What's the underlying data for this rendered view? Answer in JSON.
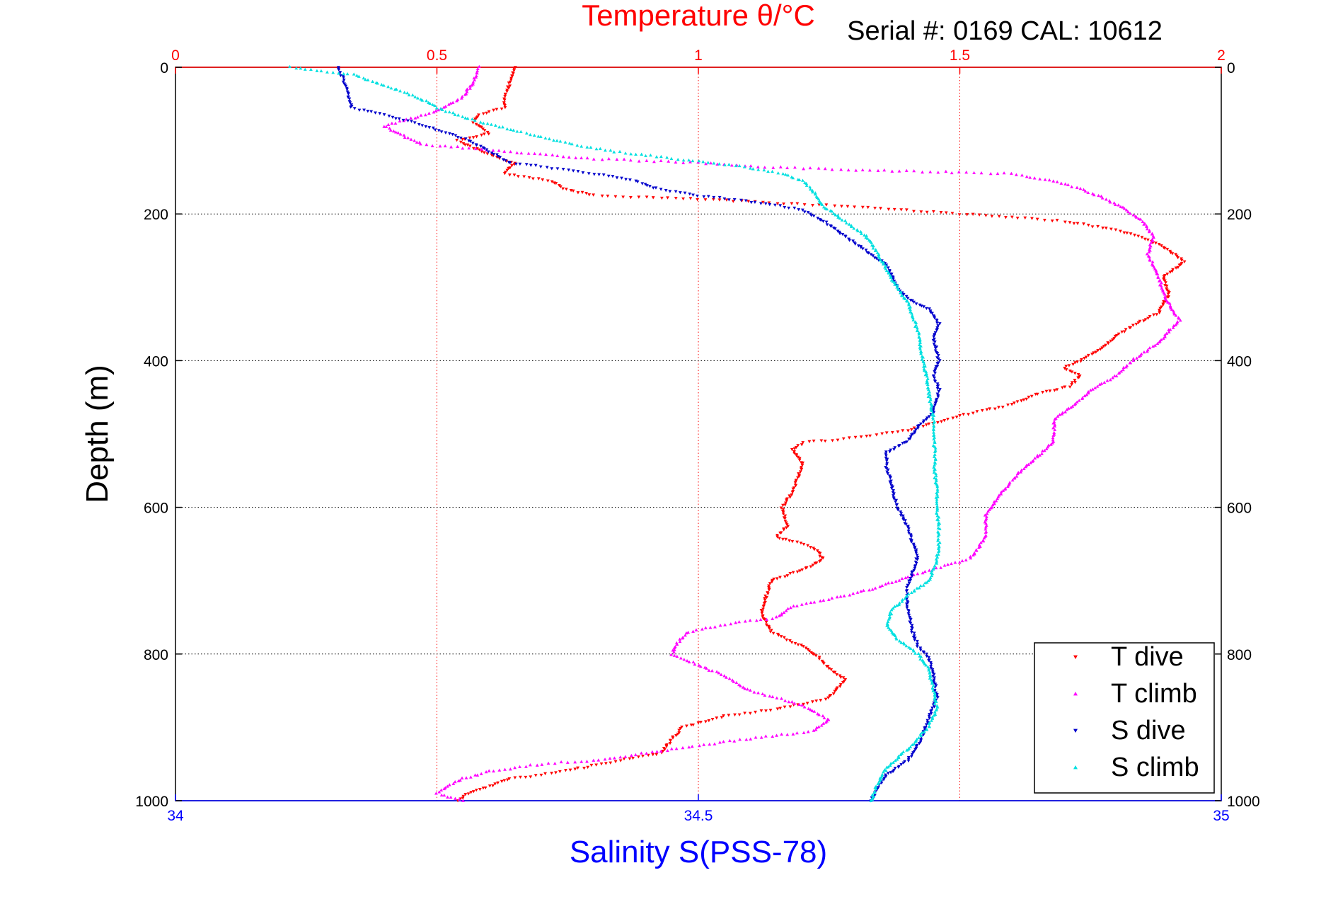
{
  "chart_data": {
    "type": "scatter",
    "header_note": "Serial #: 0169 CAL: 10612",
    "top_axis": {
      "label": "Temperature θ/°C",
      "range": [
        0,
        2
      ],
      "ticks": [
        0,
        0.5,
        1,
        1.5,
        2
      ],
      "tick_labels": [
        "0",
        "0.5",
        "1",
        "1.5",
        "2"
      ],
      "color": "#ff0000"
    },
    "bottom_axis": {
      "label": "Salinity S(PSS-78)",
      "range": [
        34,
        35
      ],
      "ticks": [
        34,
        34.5,
        35
      ],
      "tick_labels": [
        "34",
        "34.5",
        "35"
      ],
      "color": "#0000ff"
    },
    "y_axis": {
      "label": "Depth (m)",
      "range": [
        0,
        1000
      ],
      "reversed": true,
      "ticks": [
        0,
        200,
        400,
        600,
        800,
        1000
      ],
      "tick_labels": [
        "0",
        "200",
        "400",
        "600",
        "800",
        "1000"
      ]
    },
    "grid": true,
    "legend_position": "bottom-right",
    "series": [
      {
        "name": "T dive",
        "axis": "top",
        "color": "#ff0000",
        "marker": "triangle-down",
        "points": [
          [
            0.65,
            0
          ],
          [
            0.64,
            20
          ],
          [
            0.63,
            40
          ],
          [
            0.63,
            55
          ],
          [
            0.58,
            65
          ],
          [
            0.57,
            75
          ],
          [
            0.6,
            90
          ],
          [
            0.54,
            100
          ],
          [
            0.57,
            110
          ],
          [
            0.62,
            125
          ],
          [
            0.65,
            130
          ],
          [
            0.63,
            145
          ],
          [
            0.72,
            155
          ],
          [
            0.74,
            165
          ],
          [
            0.8,
            175
          ],
          [
            1.0,
            180
          ],
          [
            1.15,
            185
          ],
          [
            1.3,
            190
          ],
          [
            1.4,
            195
          ],
          [
            1.5,
            200
          ],
          [
            1.6,
            205
          ],
          [
            1.7,
            210
          ],
          [
            1.8,
            222
          ],
          [
            1.85,
            232
          ],
          [
            1.89,
            245
          ],
          [
            1.93,
            265
          ],
          [
            1.89,
            285
          ],
          [
            1.9,
            310
          ],
          [
            1.88,
            335
          ],
          [
            1.85,
            345
          ],
          [
            1.8,
            365
          ],
          [
            1.77,
            385
          ],
          [
            1.73,
            400
          ],
          [
            1.7,
            410
          ],
          [
            1.73,
            420
          ],
          [
            1.71,
            435
          ],
          [
            1.65,
            445
          ],
          [
            1.6,
            460
          ],
          [
            1.5,
            475
          ],
          [
            1.45,
            485
          ],
          [
            1.4,
            495
          ],
          [
            1.3,
            505
          ],
          [
            1.2,
            512
          ],
          [
            1.18,
            522
          ],
          [
            1.2,
            540
          ],
          [
            1.19,
            560
          ],
          [
            1.18,
            580
          ],
          [
            1.16,
            600
          ],
          [
            1.17,
            625
          ],
          [
            1.15,
            640
          ],
          [
            1.22,
            655
          ],
          [
            1.24,
            670
          ],
          [
            1.2,
            685
          ],
          [
            1.14,
            700
          ],
          [
            1.13,
            720
          ],
          [
            1.12,
            745
          ],
          [
            1.14,
            770
          ],
          [
            1.2,
            790
          ],
          [
            1.23,
            805
          ],
          [
            1.25,
            820
          ],
          [
            1.28,
            835
          ],
          [
            1.25,
            860
          ],
          [
            1.15,
            875
          ],
          [
            1.05,
            885
          ],
          [
            0.97,
            900
          ],
          [
            0.95,
            915
          ],
          [
            0.93,
            935
          ],
          [
            0.85,
            945
          ],
          [
            0.78,
            955
          ],
          [
            0.7,
            965
          ],
          [
            0.64,
            970
          ],
          [
            0.6,
            980
          ],
          [
            0.56,
            990
          ],
          [
            0.54,
            1000
          ]
        ]
      },
      {
        "name": "T climb",
        "axis": "top",
        "color": "#ff00ff",
        "marker": "triangle-up",
        "points": [
          [
            0.58,
            0
          ],
          [
            0.57,
            20
          ],
          [
            0.55,
            40
          ],
          [
            0.5,
            60
          ],
          [
            0.45,
            70
          ],
          [
            0.4,
            80
          ],
          [
            0.44,
            95
          ],
          [
            0.47,
            105
          ],
          [
            0.8,
            125
          ],
          [
            1.0,
            130
          ],
          [
            1.1,
            135
          ],
          [
            1.3,
            140
          ],
          [
            1.6,
            145
          ],
          [
            1.68,
            155
          ],
          [
            1.73,
            165
          ],
          [
            1.78,
            180
          ],
          [
            1.82,
            195
          ],
          [
            1.85,
            210
          ],
          [
            1.87,
            230
          ],
          [
            1.86,
            255
          ],
          [
            1.88,
            285
          ],
          [
            1.89,
            310
          ],
          [
            1.91,
            335
          ],
          [
            1.92,
            345
          ],
          [
            1.88,
            375
          ],
          [
            1.83,
            400
          ],
          [
            1.8,
            420
          ],
          [
            1.75,
            440
          ],
          [
            1.72,
            460
          ],
          [
            1.68,
            480
          ],
          [
            1.68,
            510
          ],
          [
            1.65,
            530
          ],
          [
            1.61,
            555
          ],
          [
            1.58,
            580
          ],
          [
            1.55,
            610
          ],
          [
            1.55,
            640
          ],
          [
            1.52,
            670
          ],
          [
            1.42,
            690
          ],
          [
            1.34,
            710
          ],
          [
            1.25,
            725
          ],
          [
            1.18,
            735
          ],
          [
            1.15,
            750
          ],
          [
            1.05,
            760
          ],
          [
            0.98,
            770
          ],
          [
            0.96,
            785
          ],
          [
            0.95,
            800
          ],
          [
            1.0,
            815
          ],
          [
            1.05,
            830
          ],
          [
            1.1,
            850
          ],
          [
            1.2,
            870
          ],
          [
            1.25,
            890
          ],
          [
            1.22,
            905
          ],
          [
            1.1,
            915
          ],
          [
            1.0,
            925
          ],
          [
            0.9,
            935
          ],
          [
            0.8,
            945
          ],
          [
            0.7,
            950
          ],
          [
            0.6,
            960
          ],
          [
            0.55,
            970
          ],
          [
            0.52,
            980
          ],
          [
            0.5,
            990
          ],
          [
            0.55,
            1000
          ]
        ]
      },
      {
        "name": "S dive",
        "axis": "bottom",
        "color": "#0000cc",
        "marker": "triangle-down",
        "points": [
          [
            34.155,
            0
          ],
          [
            34.16,
            15
          ],
          [
            34.165,
            35
          ],
          [
            34.168,
            55
          ],
          [
            34.2,
            65
          ],
          [
            34.24,
            80
          ],
          [
            34.28,
            100
          ],
          [
            34.3,
            115
          ],
          [
            34.32,
            130
          ],
          [
            34.4,
            145
          ],
          [
            34.44,
            155
          ],
          [
            34.46,
            165
          ],
          [
            34.5,
            175
          ],
          [
            34.56,
            185
          ],
          [
            34.6,
            195
          ],
          [
            34.62,
            210
          ],
          [
            34.64,
            230
          ],
          [
            34.66,
            250
          ],
          [
            34.68,
            270
          ],
          [
            34.69,
            300
          ],
          [
            34.7,
            315
          ],
          [
            34.72,
            330
          ],
          [
            34.73,
            350
          ],
          [
            34.725,
            370
          ],
          [
            34.73,
            400
          ],
          [
            34.725,
            420
          ],
          [
            34.73,
            440
          ],
          [
            34.725,
            470
          ],
          [
            34.71,
            490
          ],
          [
            34.7,
            510
          ],
          [
            34.68,
            525
          ],
          [
            34.68,
            545
          ],
          [
            34.685,
            570
          ],
          [
            34.69,
            600
          ],
          [
            34.7,
            625
          ],
          [
            34.705,
            650
          ],
          [
            34.71,
            665
          ],
          [
            34.705,
            690
          ],
          [
            34.7,
            710
          ],
          [
            34.7,
            740
          ],
          [
            34.705,
            770
          ],
          [
            34.71,
            790
          ],
          [
            34.72,
            805
          ],
          [
            34.725,
            830
          ],
          [
            34.728,
            860
          ],
          [
            34.72,
            890
          ],
          [
            34.712,
            920
          ],
          [
            34.7,
            945
          ],
          [
            34.68,
            965
          ],
          [
            34.67,
            985
          ],
          [
            34.665,
            1000
          ]
        ]
      },
      {
        "name": "S climb",
        "axis": "bottom",
        "color": "#00e0e0",
        "marker": "triangle-up",
        "points": [
          [
            34.11,
            0
          ],
          [
            34.17,
            10
          ],
          [
            34.2,
            25
          ],
          [
            34.23,
            40
          ],
          [
            34.25,
            55
          ],
          [
            34.28,
            70
          ],
          [
            34.32,
            85
          ],
          [
            34.35,
            95
          ],
          [
            34.38,
            105
          ],
          [
            34.42,
            115
          ],
          [
            34.48,
            125
          ],
          [
            34.54,
            135
          ],
          [
            34.58,
            145
          ],
          [
            34.6,
            155
          ],
          [
            34.61,
            170
          ],
          [
            34.62,
            190
          ],
          [
            34.64,
            210
          ],
          [
            34.66,
            230
          ],
          [
            34.67,
            250
          ],
          [
            34.68,
            275
          ],
          [
            34.69,
            300
          ],
          [
            34.7,
            320
          ],
          [
            34.705,
            340
          ],
          [
            34.71,
            360
          ],
          [
            34.712,
            380
          ],
          [
            34.715,
            400
          ],
          [
            34.718,
            420
          ],
          [
            34.72,
            440
          ],
          [
            34.722,
            460
          ],
          [
            34.725,
            480
          ],
          [
            34.725,
            500
          ],
          [
            34.726,
            525
          ],
          [
            34.726,
            550
          ],
          [
            34.728,
            575
          ],
          [
            34.728,
            600
          ],
          [
            34.73,
            625
          ],
          [
            34.73,
            650
          ],
          [
            34.728,
            675
          ],
          [
            34.72,
            700
          ],
          [
            34.7,
            720
          ],
          [
            34.685,
            740
          ],
          [
            34.68,
            760
          ],
          [
            34.69,
            780
          ],
          [
            34.71,
            800
          ],
          [
            34.72,
            820
          ],
          [
            34.725,
            850
          ],
          [
            34.728,
            875
          ],
          [
            34.72,
            900
          ],
          [
            34.7,
            930
          ],
          [
            34.68,
            955
          ],
          [
            34.67,
            980
          ],
          [
            34.665,
            1000
          ]
        ]
      }
    ]
  }
}
